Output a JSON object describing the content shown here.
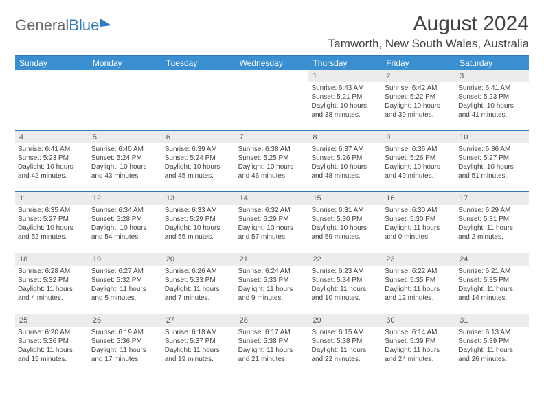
{
  "logo": {
    "text1": "General",
    "text2": "Blue"
  },
  "header": {
    "month_title": "August 2024",
    "location": "Tamworth, New South Wales, Australia"
  },
  "colors": {
    "header_bar": "#3a8fd0",
    "rule": "#2f7bbf",
    "daynum_bg": "#ececec",
    "text": "#444444",
    "logo_gray": "#6a6a6a"
  },
  "days_of_week": [
    "Sunday",
    "Monday",
    "Tuesday",
    "Wednesday",
    "Thursday",
    "Friday",
    "Saturday"
  ],
  "weeks": [
    [
      {
        "empty": true
      },
      {
        "empty": true
      },
      {
        "empty": true
      },
      {
        "empty": true
      },
      {
        "day": "1",
        "sunrise": "Sunrise: 6:43 AM",
        "sunset": "Sunset: 5:21 PM",
        "daylight1": "Daylight: 10 hours",
        "daylight2": "and 38 minutes."
      },
      {
        "day": "2",
        "sunrise": "Sunrise: 6:42 AM",
        "sunset": "Sunset: 5:22 PM",
        "daylight1": "Daylight: 10 hours",
        "daylight2": "and 39 minutes."
      },
      {
        "day": "3",
        "sunrise": "Sunrise: 6:41 AM",
        "sunset": "Sunset: 5:23 PM",
        "daylight1": "Daylight: 10 hours",
        "daylight2": "and 41 minutes."
      }
    ],
    [
      {
        "day": "4",
        "sunrise": "Sunrise: 6:41 AM",
        "sunset": "Sunset: 5:23 PM",
        "daylight1": "Daylight: 10 hours",
        "daylight2": "and 42 minutes."
      },
      {
        "day": "5",
        "sunrise": "Sunrise: 6:40 AM",
        "sunset": "Sunset: 5:24 PM",
        "daylight1": "Daylight: 10 hours",
        "daylight2": "and 43 minutes."
      },
      {
        "day": "6",
        "sunrise": "Sunrise: 6:39 AM",
        "sunset": "Sunset: 5:24 PM",
        "daylight1": "Daylight: 10 hours",
        "daylight2": "and 45 minutes."
      },
      {
        "day": "7",
        "sunrise": "Sunrise: 6:38 AM",
        "sunset": "Sunset: 5:25 PM",
        "daylight1": "Daylight: 10 hours",
        "daylight2": "and 46 minutes."
      },
      {
        "day": "8",
        "sunrise": "Sunrise: 6:37 AM",
        "sunset": "Sunset: 5:26 PM",
        "daylight1": "Daylight: 10 hours",
        "daylight2": "and 48 minutes."
      },
      {
        "day": "9",
        "sunrise": "Sunrise: 6:36 AM",
        "sunset": "Sunset: 5:26 PM",
        "daylight1": "Daylight: 10 hours",
        "daylight2": "and 49 minutes."
      },
      {
        "day": "10",
        "sunrise": "Sunrise: 6:36 AM",
        "sunset": "Sunset: 5:27 PM",
        "daylight1": "Daylight: 10 hours",
        "daylight2": "and 51 minutes."
      }
    ],
    [
      {
        "day": "11",
        "sunrise": "Sunrise: 6:35 AM",
        "sunset": "Sunset: 5:27 PM",
        "daylight1": "Daylight: 10 hours",
        "daylight2": "and 52 minutes."
      },
      {
        "day": "12",
        "sunrise": "Sunrise: 6:34 AM",
        "sunset": "Sunset: 5:28 PM",
        "daylight1": "Daylight: 10 hours",
        "daylight2": "and 54 minutes."
      },
      {
        "day": "13",
        "sunrise": "Sunrise: 6:33 AM",
        "sunset": "Sunset: 5:29 PM",
        "daylight1": "Daylight: 10 hours",
        "daylight2": "and 55 minutes."
      },
      {
        "day": "14",
        "sunrise": "Sunrise: 6:32 AM",
        "sunset": "Sunset: 5:29 PM",
        "daylight1": "Daylight: 10 hours",
        "daylight2": "and 57 minutes."
      },
      {
        "day": "15",
        "sunrise": "Sunrise: 6:31 AM",
        "sunset": "Sunset: 5:30 PM",
        "daylight1": "Daylight: 10 hours",
        "daylight2": "and 59 minutes."
      },
      {
        "day": "16",
        "sunrise": "Sunrise: 6:30 AM",
        "sunset": "Sunset: 5:30 PM",
        "daylight1": "Daylight: 11 hours",
        "daylight2": "and 0 minutes."
      },
      {
        "day": "17",
        "sunrise": "Sunrise: 6:29 AM",
        "sunset": "Sunset: 5:31 PM",
        "daylight1": "Daylight: 11 hours",
        "daylight2": "and 2 minutes."
      }
    ],
    [
      {
        "day": "18",
        "sunrise": "Sunrise: 6:28 AM",
        "sunset": "Sunset: 5:32 PM",
        "daylight1": "Daylight: 11 hours",
        "daylight2": "and 4 minutes."
      },
      {
        "day": "19",
        "sunrise": "Sunrise: 6:27 AM",
        "sunset": "Sunset: 5:32 PM",
        "daylight1": "Daylight: 11 hours",
        "daylight2": "and 5 minutes."
      },
      {
        "day": "20",
        "sunrise": "Sunrise: 6:26 AM",
        "sunset": "Sunset: 5:33 PM",
        "daylight1": "Daylight: 11 hours",
        "daylight2": "and 7 minutes."
      },
      {
        "day": "21",
        "sunrise": "Sunrise: 6:24 AM",
        "sunset": "Sunset: 5:33 PM",
        "daylight1": "Daylight: 11 hours",
        "daylight2": "and 9 minutes."
      },
      {
        "day": "22",
        "sunrise": "Sunrise: 6:23 AM",
        "sunset": "Sunset: 5:34 PM",
        "daylight1": "Daylight: 11 hours",
        "daylight2": "and 10 minutes."
      },
      {
        "day": "23",
        "sunrise": "Sunrise: 6:22 AM",
        "sunset": "Sunset: 5:35 PM",
        "daylight1": "Daylight: 11 hours",
        "daylight2": "and 12 minutes."
      },
      {
        "day": "24",
        "sunrise": "Sunrise: 6:21 AM",
        "sunset": "Sunset: 5:35 PM",
        "daylight1": "Daylight: 11 hours",
        "daylight2": "and 14 minutes."
      }
    ],
    [
      {
        "day": "25",
        "sunrise": "Sunrise: 6:20 AM",
        "sunset": "Sunset: 5:36 PM",
        "daylight1": "Daylight: 11 hours",
        "daylight2": "and 15 minutes."
      },
      {
        "day": "26",
        "sunrise": "Sunrise: 6:19 AM",
        "sunset": "Sunset: 5:36 PM",
        "daylight1": "Daylight: 11 hours",
        "daylight2": "and 17 minutes."
      },
      {
        "day": "27",
        "sunrise": "Sunrise: 6:18 AM",
        "sunset": "Sunset: 5:37 PM",
        "daylight1": "Daylight: 11 hours",
        "daylight2": "and 19 minutes."
      },
      {
        "day": "28",
        "sunrise": "Sunrise: 6:17 AM",
        "sunset": "Sunset: 5:38 PM",
        "daylight1": "Daylight: 11 hours",
        "daylight2": "and 21 minutes."
      },
      {
        "day": "29",
        "sunrise": "Sunrise: 6:15 AM",
        "sunset": "Sunset: 5:38 PM",
        "daylight1": "Daylight: 11 hours",
        "daylight2": "and 22 minutes."
      },
      {
        "day": "30",
        "sunrise": "Sunrise: 6:14 AM",
        "sunset": "Sunset: 5:39 PM",
        "daylight1": "Daylight: 11 hours",
        "daylight2": "and 24 minutes."
      },
      {
        "day": "31",
        "sunrise": "Sunrise: 6:13 AM",
        "sunset": "Sunset: 5:39 PM",
        "daylight1": "Daylight: 11 hours",
        "daylight2": "and 26 minutes."
      }
    ]
  ]
}
